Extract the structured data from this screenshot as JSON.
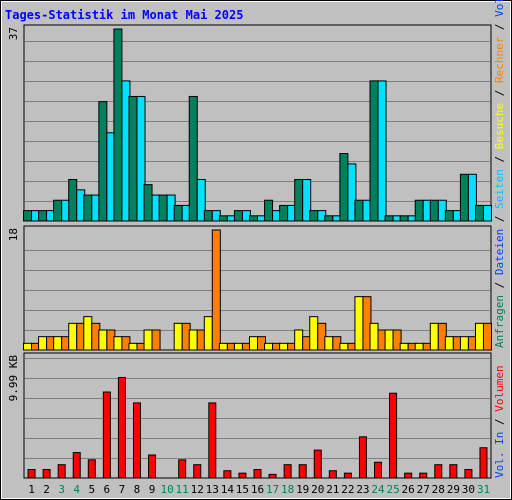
{
  "chart_data": {
    "type": "bar",
    "title": "Tages-Statistik im Monat Mai 2025",
    "categories": [
      "1",
      "2",
      "3",
      "4",
      "5",
      "6",
      "7",
      "8",
      "9",
      "10",
      "11",
      "12",
      "13",
      "14",
      "15",
      "16",
      "17",
      "18",
      "19",
      "20",
      "21",
      "22",
      "23",
      "24",
      "25",
      "26",
      "27",
      "28",
      "29",
      "30",
      "31"
    ],
    "weekend_days": [
      3,
      4,
      10,
      11,
      17,
      18,
      24,
      25,
      31
    ],
    "panels": [
      {
        "id": "requests",
        "max_label": "37",
        "ymax": 37,
        "series": [
          {
            "name": "Anfragen",
            "color": "#00805c",
            "values": [
              2,
              2,
              4,
              8,
              5,
              23,
              37,
              24,
              7,
              5,
              3,
              24,
              2,
              1,
              2,
              1,
              4,
              3,
              8,
              2,
              1,
              13,
              4,
              27,
              1,
              1,
              4,
              4,
              2,
              9,
              3
            ]
          },
          {
            "name": "Dateien",
            "color": "#00e0ff",
            "values": [
              2,
              2,
              4,
              6,
              5,
              17,
              27,
              24,
              5,
              5,
              3,
              8,
              2,
              1,
              2,
              1,
              2,
              3,
              8,
              2,
              1,
              11,
              4,
              27,
              1,
              1,
              4,
              4,
              2,
              9,
              3
            ]
          },
          {
            "name": "Seiten",
            "color": "#00c0ff",
            "values": [
              2,
              2,
              4,
              6,
              5,
              17,
              27,
              24,
              5,
              5,
              3,
              8,
              2,
              1,
              2,
              1,
              2,
              3,
              8,
              2,
              1,
              11,
              4,
              27,
              1,
              1,
              4,
              4,
              2,
              9,
              3
            ]
          }
        ]
      },
      {
        "id": "visits",
        "max_label": "18",
        "ymax": 18,
        "series": [
          {
            "name": "Besuche",
            "color": "#ffff00",
            "values": [
              1,
              2,
              2,
              4,
              5,
              3,
              2,
              1,
              3,
              0,
              4,
              3,
              5,
              1,
              1,
              2,
              1,
              1,
              3,
              5,
              2,
              1,
              8,
              4,
              3,
              1,
              1,
              4,
              2,
              2,
              4
            ]
          },
          {
            "name": "Rechner",
            "color": "#ff8000",
            "values": [
              1,
              2,
              2,
              4,
              4,
              3,
              2,
              1,
              3,
              0,
              4,
              3,
              18,
              1,
              1,
              2,
              1,
              1,
              2,
              4,
              2,
              1,
              8,
              3,
              3,
              1,
              1,
              4,
              2,
              2,
              4
            ]
          }
        ]
      },
      {
        "id": "volume",
        "max_label": "9.99 KB",
        "ymax": 9.99,
        "series": [
          {
            "name": "Volumen",
            "color": "#ff0000",
            "values": [
              0.7,
              0.7,
              1.1,
              2.1,
              1.5,
              7.1,
              8.3,
              6.2,
              1.9,
              0,
              1.5,
              1.1,
              6.2,
              0.6,
              0.4,
              0.7,
              0.3,
              1.1,
              1.1,
              2.3,
              0.6,
              0.4,
              3.4,
              1.3,
              7.0,
              0.4,
              0.4,
              1.1,
              1.1,
              0.7,
              2.5
            ]
          }
        ]
      }
    ],
    "right_legend": {
      "top": [
        {
          "text": "Anfragen",
          "color": "#00805c"
        },
        {
          "text": " / ",
          "color": "#000000"
        },
        {
          "text": "Dateien",
          "color": "#0040ff"
        },
        {
          "text": " / ",
          "color": "#000000"
        },
        {
          "text": "Seiten",
          "color": "#00c0ff"
        },
        {
          "text": " / ",
          "color": "#000000"
        },
        {
          "text": "Besuche",
          "color": "#ffff00"
        },
        {
          "text": " / ",
          "color": "#000000"
        },
        {
          "text": "Rechner",
          "color": "#ff8000"
        },
        {
          "text": " / ",
          "color": "#000000"
        },
        {
          "text": "Vol. Out",
          "color": "#0040ff"
        }
      ],
      "bottom": [
        {
          "text": "Vol. In",
          "color": "#0040ff"
        },
        {
          "text": " / ",
          "color": "#000000"
        },
        {
          "text": "Volumen",
          "color": "#ff0000"
        }
      ]
    },
    "colors": {
      "title": "#0000ff",
      "background": "#c0c0c0",
      "weekday_label": "#000000",
      "weekend_label": "#00805c"
    }
  }
}
